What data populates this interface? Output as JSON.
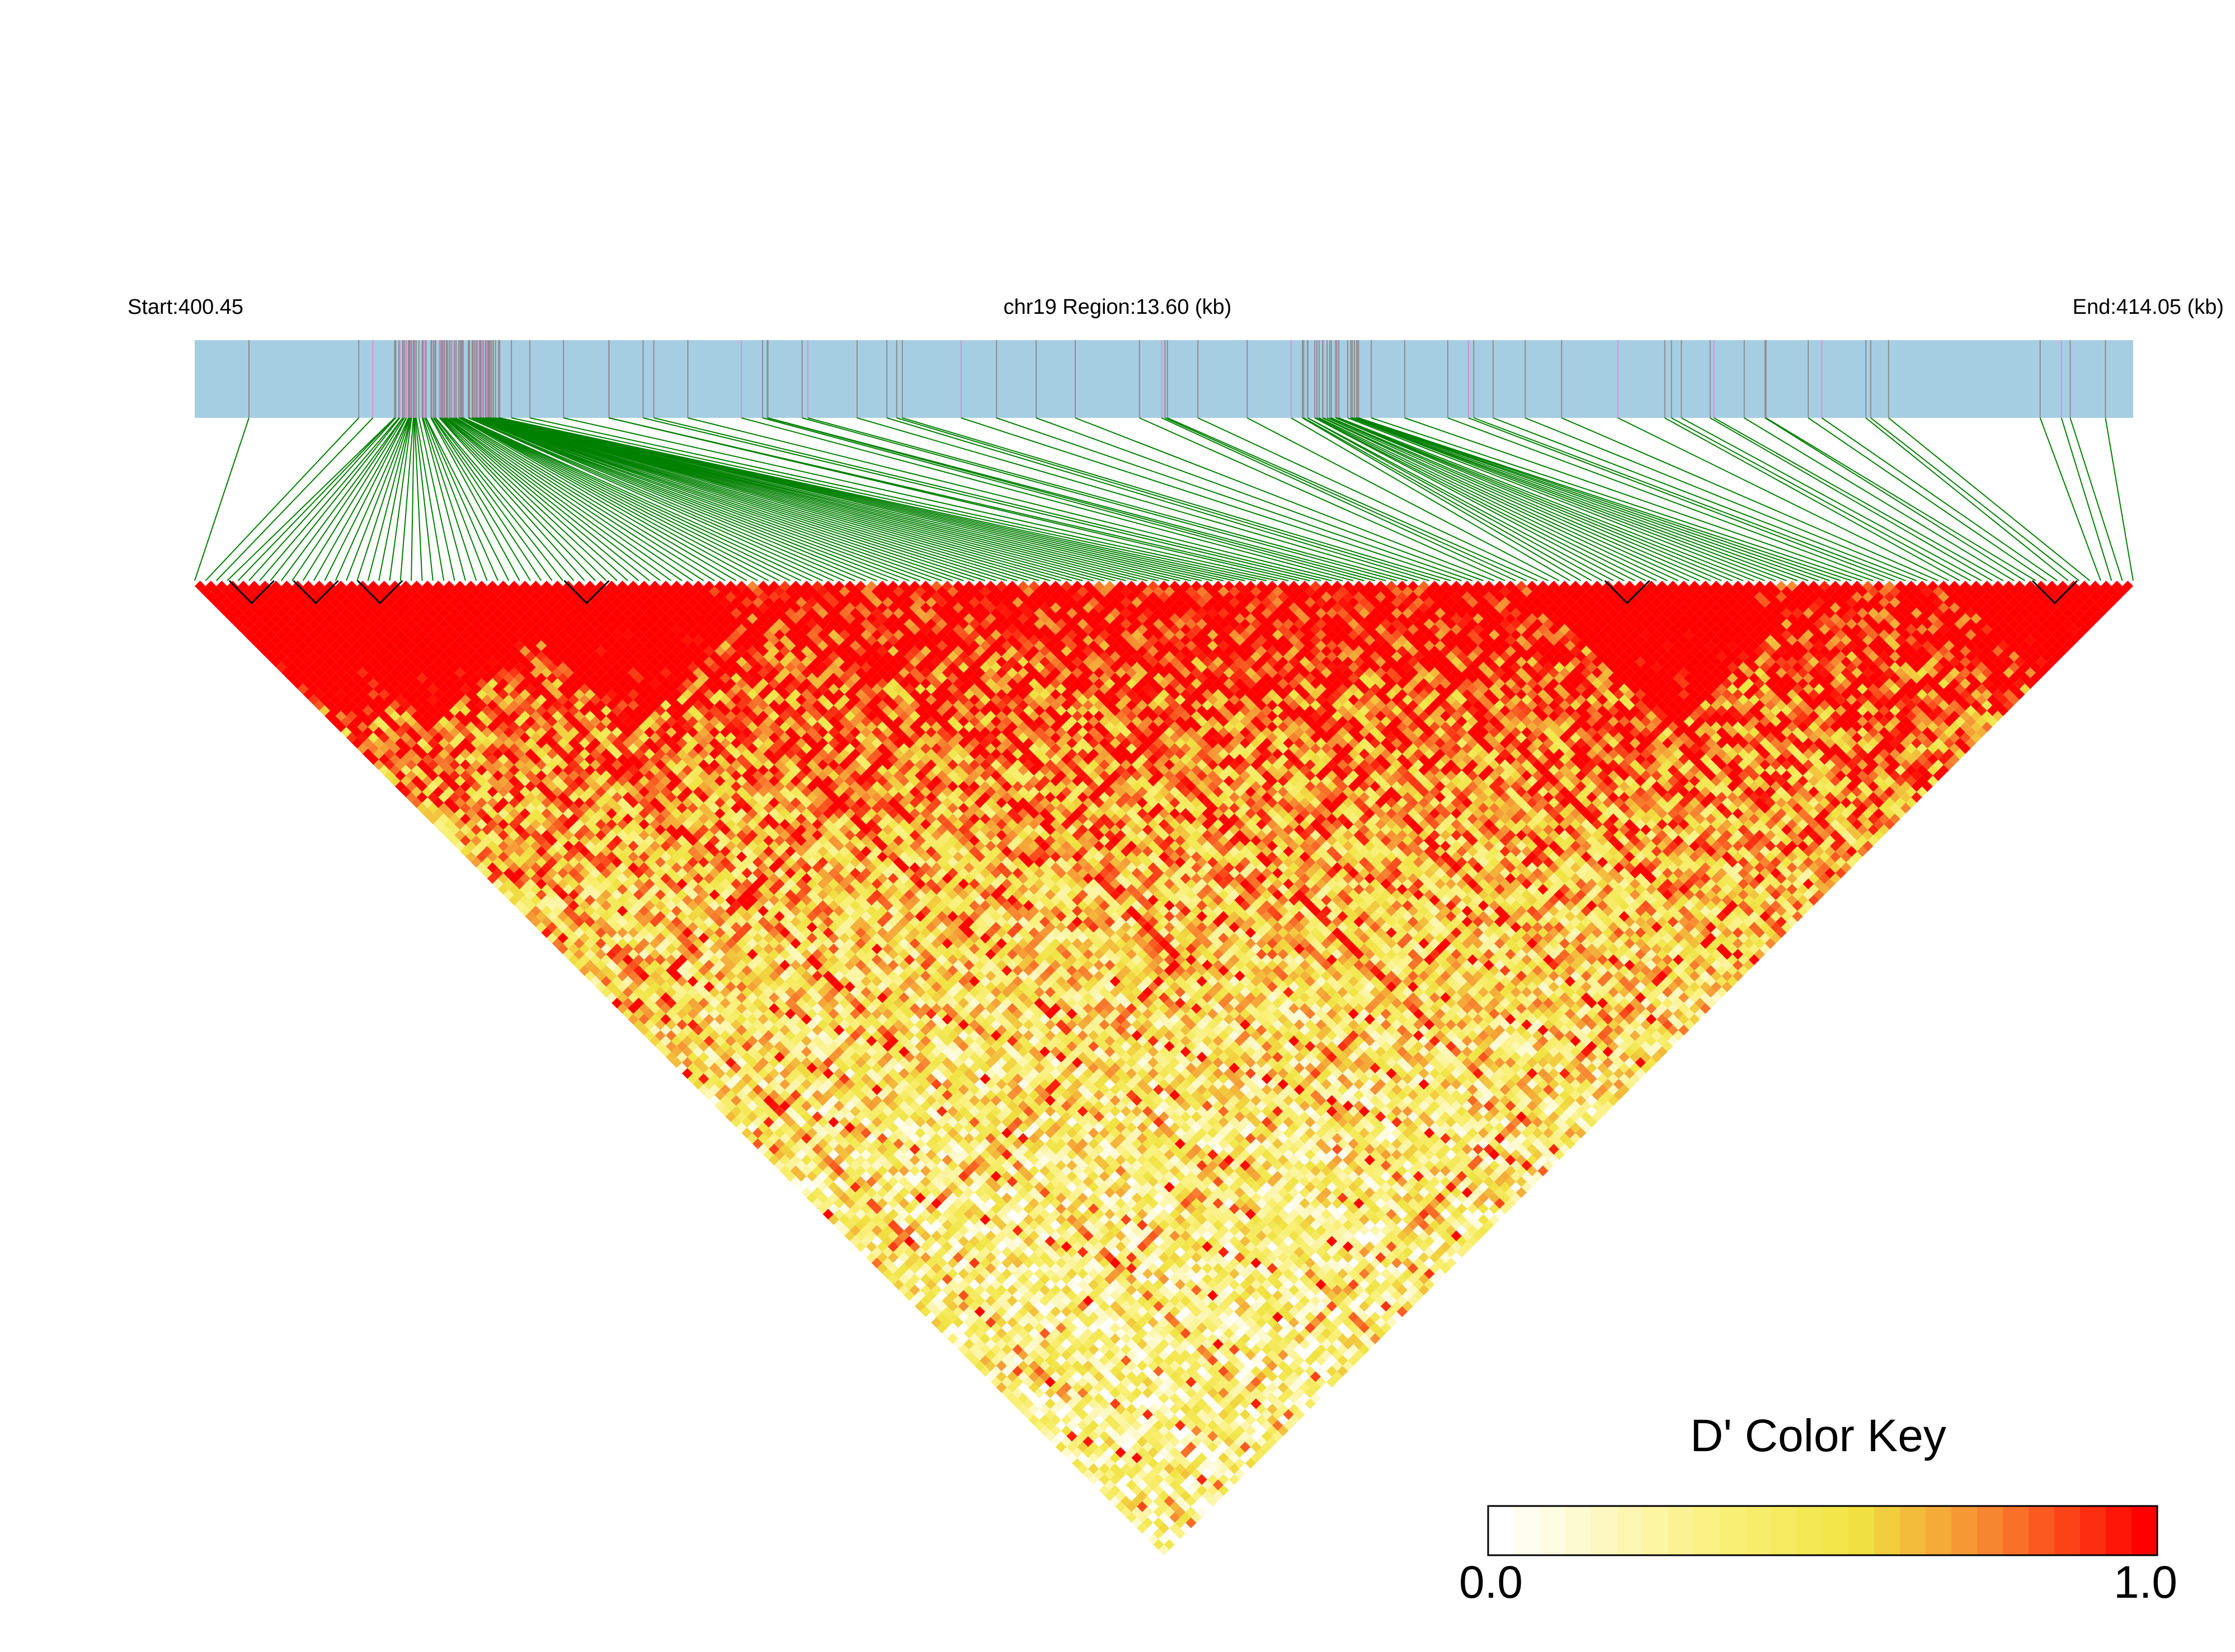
{
  "chart_data": {
    "type": "heatmap",
    "subtype": "linkage-disequilibrium-triangle",
    "measure": "D'",
    "chromosome": "chr19",
    "start_kb": 400.45,
    "end_kb": 414.05,
    "region_kb": 13.6,
    "labels": {
      "start": "Start:400.45",
      "region": "chr19 Region:13.60 (kb)",
      "end": "End:414.05 (kb)"
    },
    "color_key": {
      "title": "D' Color Key",
      "min_label": "0.0",
      "max_label": "1.0",
      "min": 0.0,
      "max": 1.0,
      "colors": [
        "#ffffff",
        "#f5ef5a",
        "#f0e442",
        "#f7a03a",
        "#ff0000"
      ]
    },
    "colors": {
      "gene_track": "#a6cee3",
      "snp_tick": "#8c8c8c",
      "snp_tick_alt": "#e38ad6",
      "connector": "#008000",
      "block_border": "#000000"
    },
    "snp_dense_regions_kb": [
      [
        401.85,
        402.6
      ],
      [
        408.22,
        408.62
      ]
    ],
    "block_peak_positions_kb": [
      400.85,
      401.3,
      401.75,
      403.2,
      410.5,
      413.5
    ],
    "snp_count": 180,
    "grid_on": false,
    "legend_position": "bottom-right"
  }
}
